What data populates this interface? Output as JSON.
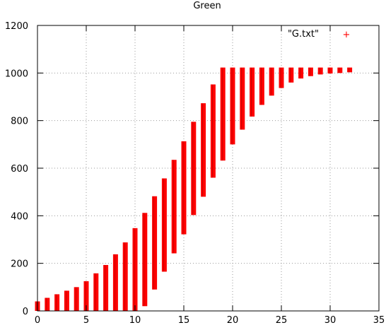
{
  "chart_data": {
    "type": "candlestick",
    "title": "Green",
    "xlabel": "",
    "ylabel": "",
    "xlim": [
      0,
      35
    ],
    "ylim": [
      0,
      1200
    ],
    "x_ticks": [
      0,
      5,
      10,
      15,
      20,
      25,
      30,
      35
    ],
    "y_ticks": [
      0,
      200,
      400,
      600,
      800,
      1000,
      1200
    ],
    "grid": true,
    "legend": {
      "position": "top-right",
      "label": "\"G.txt\"",
      "marker": "+"
    },
    "series_color": "#ff0000",
    "points": [
      {
        "x": 0,
        "low": 0,
        "high": 40
      },
      {
        "x": 1,
        "low": 0,
        "high": 55
      },
      {
        "x": 2,
        "low": 0,
        "high": 70
      },
      {
        "x": 3,
        "low": 0,
        "high": 85
      },
      {
        "x": 4,
        "low": 0,
        "high": 100
      },
      {
        "x": 5,
        "low": 0,
        "high": 125
      },
      {
        "x": 6,
        "low": 0,
        "high": 158
      },
      {
        "x": 7,
        "low": 0,
        "high": 193
      },
      {
        "x": 8,
        "low": 0,
        "high": 238
      },
      {
        "x": 9,
        "low": 0,
        "high": 288
      },
      {
        "x": 10,
        "low": 0,
        "high": 348
      },
      {
        "x": 11,
        "low": 20,
        "high": 412
      },
      {
        "x": 12,
        "low": 90,
        "high": 482
      },
      {
        "x": 13,
        "low": 165,
        "high": 557
      },
      {
        "x": 14,
        "low": 242,
        "high": 635
      },
      {
        "x": 15,
        "low": 322,
        "high": 713
      },
      {
        "x": 16,
        "low": 403,
        "high": 795
      },
      {
        "x": 17,
        "low": 480,
        "high": 873
      },
      {
        "x": 18,
        "low": 560,
        "high": 952
      },
      {
        "x": 19,
        "low": 632,
        "high": 1023
      },
      {
        "x": 20,
        "low": 700,
        "high": 1023
      },
      {
        "x": 21,
        "low": 762,
        "high": 1023
      },
      {
        "x": 22,
        "low": 817,
        "high": 1023
      },
      {
        "x": 23,
        "low": 866,
        "high": 1023
      },
      {
        "x": 24,
        "low": 905,
        "high": 1023
      },
      {
        "x": 25,
        "low": 937,
        "high": 1023
      },
      {
        "x": 26,
        "low": 960,
        "high": 1023
      },
      {
        "x": 27,
        "low": 977,
        "high": 1023
      },
      {
        "x": 28,
        "low": 987,
        "high": 1023
      },
      {
        "x": 29,
        "low": 994,
        "high": 1023
      },
      {
        "x": 30,
        "low": 998,
        "high": 1023
      },
      {
        "x": 31,
        "low": 1000,
        "high": 1023
      },
      {
        "x": 32,
        "low": 1003,
        "high": 1023
      }
    ]
  }
}
